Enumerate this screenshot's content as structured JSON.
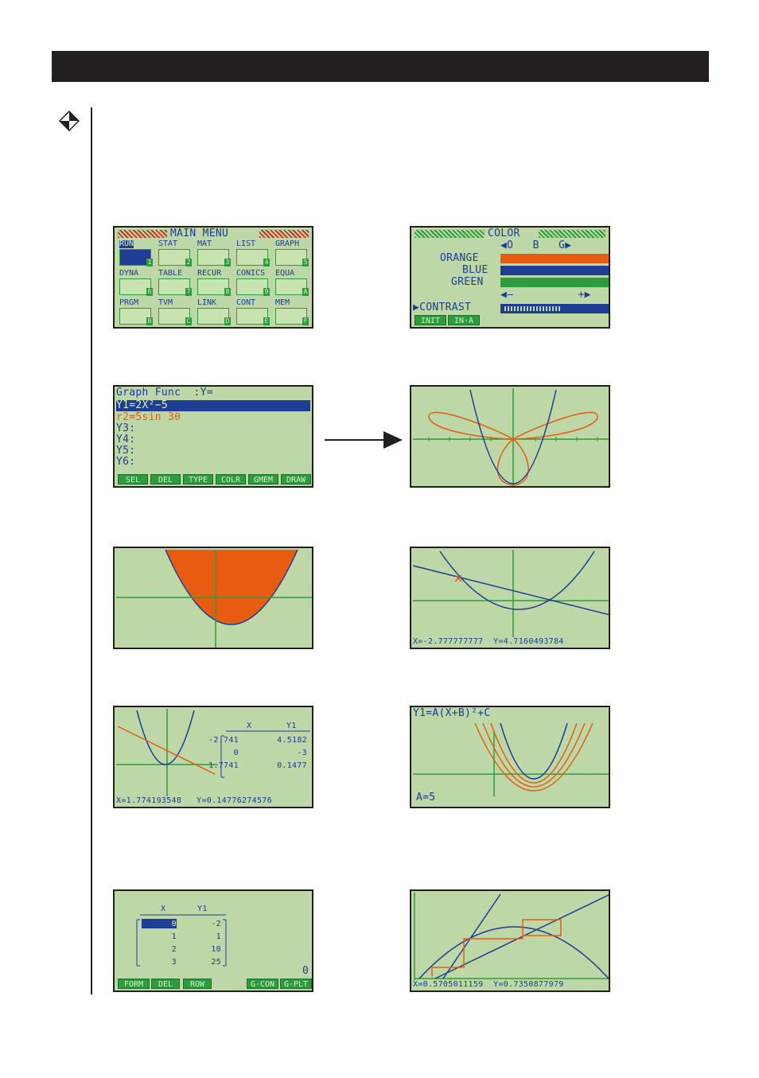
{
  "main_menu": {
    "title": "MAIN MENU",
    "icons": [
      {
        "label": "RUN",
        "num": "1"
      },
      {
        "label": "STAT",
        "num": "2"
      },
      {
        "label": "MAT",
        "num": "3"
      },
      {
        "label": "LIST",
        "num": "4"
      },
      {
        "label": "GRAPH",
        "num": "5"
      },
      {
        "label": "DYNA",
        "num": "6"
      },
      {
        "label": "TABLE",
        "num": "7"
      },
      {
        "label": "RECUR",
        "num": "8"
      },
      {
        "label": "CONICS",
        "num": "9"
      },
      {
        "label": "EQUA",
        "num": "A"
      },
      {
        "label": "PRGM",
        "num": "B"
      },
      {
        "label": "TVM",
        "num": "C"
      },
      {
        "label": "LINK",
        "num": "D"
      },
      {
        "label": "CONT",
        "num": "E"
      },
      {
        "label": "MEM",
        "num": "F"
      }
    ]
  },
  "color_screen": {
    "title": "COLOR",
    "scale": "◀O   B   G▶",
    "rows": [
      "ORANGE",
      "BLUE",
      "GREEN"
    ],
    "contrast_scale": "◀—          +▶",
    "contrast": "▶CONTRAST",
    "fkeys": [
      "INIT",
      "IN·A"
    ],
    "colors": {
      "orange": "#e85c12",
      "blue": "#1e3d95",
      "green": "#2e9c3e"
    }
  },
  "graph_func": {
    "title": "Graph Func  :Y=",
    "lines": [
      "Y1=2X²−5",
      "r2=5sin 3θ",
      "Y3:",
      "Y4:",
      "Y5:",
      "Y6:"
    ],
    "fkeys": [
      "SEL",
      "DEL",
      "TYPE",
      "COLR",
      "GMEM",
      "DRAW"
    ]
  },
  "trace_screen": {
    "readout": "X=-2.777777777  Y=4.7160493784"
  },
  "table_graph": {
    "headers": [
      "X",
      "Y1"
    ],
    "rows": [
      [
        "-2.741",
        "4.5182"
      ],
      [
        "0",
        "-3"
      ],
      [
        "1.7741",
        "0.1477"
      ]
    ],
    "readout": "X=1.774193548   Y=0.14776274576"
  },
  "dyna_screen": {
    "formula": "Y1=A(X+B)²+C",
    "param": "A=5"
  },
  "list_screen": {
    "headers": [
      "X",
      "Y1"
    ],
    "rows": [
      [
        "0",
        "-2"
      ],
      [
        "1",
        "1"
      ],
      [
        "2",
        "10"
      ],
      [
        "3",
        "25"
      ]
    ],
    "cell": "0",
    "fkeys": [
      "FORM",
      "DEL",
      "ROW",
      "G·CON",
      "G·PLT"
    ]
  },
  "recur_screen": {
    "readout": "X=0.5705011159  Y=0.7350877979"
  }
}
